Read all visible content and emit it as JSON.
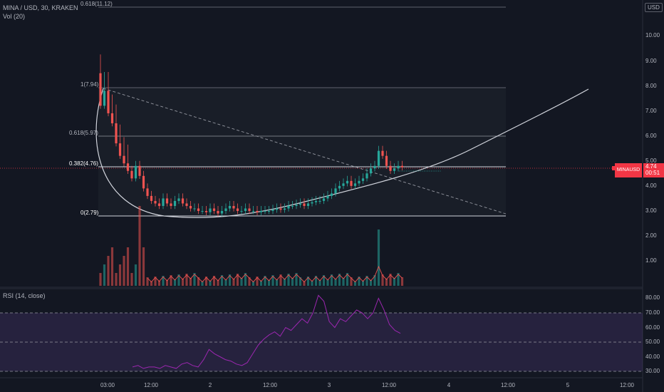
{
  "header": {
    "title": "MINA / USD, 30, KRAKEN",
    "volume_label": "Vol (20)",
    "currency": "USD",
    "rsi_label": "RSI (14, close)"
  },
  "price_tag": {
    "symbol": "MINAUSD",
    "price": "4.74",
    "countdown": "00:51"
  },
  "y_ticks_price": [
    "10.00",
    "9.00",
    "8.00",
    "7.00",
    "6.00",
    "5.00",
    "4.00",
    "3.00",
    "2.00",
    "1.00"
  ],
  "y_ticks_rsi": [
    "80.00",
    "70.00",
    "60.00",
    "50.00",
    "40.00",
    "30.00"
  ],
  "x_ticks": [
    "03:00",
    "12:00",
    "2",
    "12:00",
    "3",
    "12:00",
    "4",
    "12:00",
    "5",
    "12:00"
  ],
  "fib_levels": [
    {
      "label": "0.618(11.12)",
      "price": 11.12
    },
    {
      "label": "1(7.94)",
      "price": 7.94
    },
    {
      "label": "0.618(5.97)",
      "price": 5.97
    },
    {
      "label": "0.382(4.76)",
      "price": 4.76
    },
    {
      "label": "0(2.79)",
      "price": 2.79
    }
  ],
  "colors": {
    "up": "#26a69a",
    "down": "#ef5350",
    "rsi": "#7e57c2",
    "grid_line": "#787b86",
    "accent_red": "#f23645"
  },
  "chart_data": {
    "type": "candlestick",
    "price_scale": [
      3.0,
      10.0
    ],
    "rsi_bands": [
      70,
      50,
      30
    ],
    "candles_close": [
      7.2,
      7.8,
      6.9,
      6.5,
      5.7,
      5.2,
      4.9,
      4.6,
      4.3,
      4.8,
      4.4,
      3.9,
      3.6,
      3.4,
      3.3,
      3.2,
      3.5,
      3.3,
      3.2,
      3.4,
      3.5,
      3.3,
      3.2,
      3.1,
      3.1,
      3.0,
      3.0,
      2.95,
      3.1,
      3.0,
      2.9,
      3.0,
      3.1,
      3.2,
      3.1,
      3.0,
      3.0,
      3.1,
      3.0,
      3.0,
      2.95,
      3.0,
      3.0,
      3.0,
      3.05,
      3.1,
      3.05,
      3.1,
      3.2,
      3.2,
      3.25,
      3.3,
      3.2,
      3.3,
      3.35,
      3.4,
      3.4,
      3.5,
      3.6,
      3.7,
      3.9,
      4.0,
      4.1,
      4.2,
      4.0,
      4.1,
      4.2,
      4.3,
      4.5,
      4.7,
      4.8,
      5.4,
      5.2,
      4.8,
      4.6,
      4.7,
      4.8,
      4.74
    ],
    "rsi_values": [
      33,
      34,
      32,
      33,
      33,
      32,
      34,
      33,
      32,
      35,
      36,
      34,
      33,
      38,
      45,
      42,
      40,
      38,
      37,
      35,
      34,
      36,
      42,
      48,
      52,
      55,
      57,
      54,
      60,
      58,
      62,
      66,
      63,
      70,
      82,
      78,
      64,
      60,
      66,
      64,
      68,
      72,
      70,
      66,
      70,
      80,
      72,
      62,
      58,
      56
    ]
  }
}
